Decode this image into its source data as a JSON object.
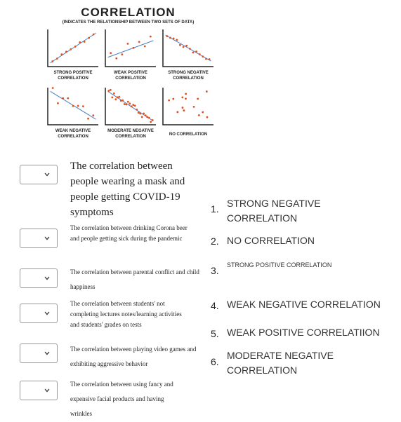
{
  "infographic": {
    "title": "CORRELATION",
    "subtitle": "(INDICATES THE RELATIONSHIP BETWEEN TWO SETS OF DATA)",
    "panels": [
      {
        "label": [
          "STRONG POSITIVE",
          "CORRELATION"
        ]
      },
      {
        "label": [
          "WEAK POSITIVE",
          "CORRELATION"
        ]
      },
      {
        "label": [
          "STRONG NEGATIVE",
          "CORRELATION"
        ]
      },
      {
        "label": [
          "WEAK NEGATIVE",
          "CORRELATION"
        ]
      },
      {
        "label": [
          "MODERATE NEGATIVE",
          "CORRELATION"
        ]
      },
      {
        "label": [
          "NO CORRELATION"
        ]
      }
    ]
  },
  "questions": [
    "The correlation between people wearing a mask and people getting COVID-19 symptoms",
    "The correlation between drinking Corona beer and people getting sick during the pandemic",
    "The correlation between parental conflict and child happiness",
    "The correlation between students' not completing lectures notes/learning activities and students' grades on tests",
    "The correlation between playing video games and exhibiting aggressive behavior",
    "The correlation between using fancy and expensive  facial products and having wrinkles"
  ],
  "options": [
    {
      "number": "1.",
      "text": "STRONG NEGATIVE CORRELATION"
    },
    {
      "number": "2.",
      "text": "NO CORRELATION"
    },
    {
      "number": "3.",
      "text": "STRONG POSITIVE CORRELATION"
    },
    {
      "number": "4.",
      "text": "WEAK NEGATIVE CORRELATION"
    },
    {
      "number": "5.",
      "text": "WEAK POSITIVE CORRELATIION"
    },
    {
      "number": "6.",
      "text": "MODERATE NEGATIVE CORRELATION"
    }
  ]
}
